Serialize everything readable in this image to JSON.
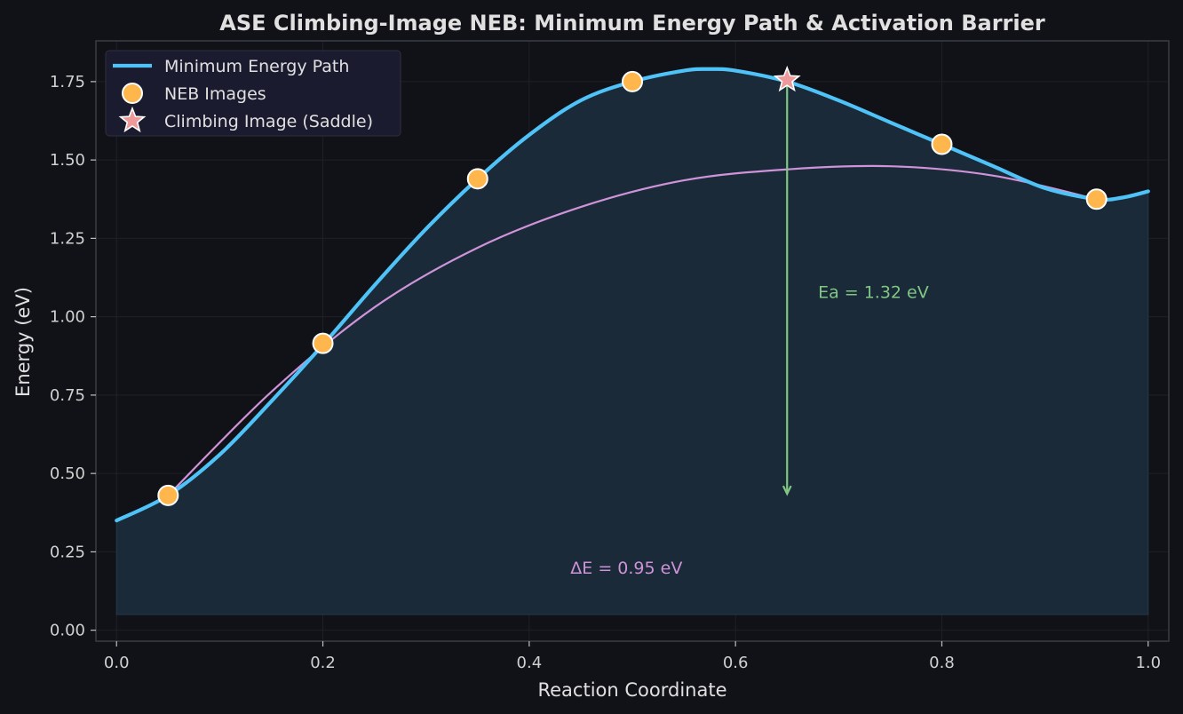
{
  "chart_data": {
    "type": "line",
    "title": "ASE Climbing-Image NEB: Minimum Energy Path & Activation Barrier",
    "xlabel": "Reaction Coordinate",
    "ylabel": "Energy (eV)",
    "xlim": [
      -0.02,
      1.02
    ],
    "ylim": [
      -0.035,
      1.88
    ],
    "x_ticks": [
      0.0,
      0.2,
      0.4,
      0.6,
      0.8,
      1.0
    ],
    "x_tick_labels": [
      "0.0",
      "0.2",
      "0.4",
      "0.6",
      "0.8",
      "1.0"
    ],
    "y_ticks": [
      0.0,
      0.25,
      0.5,
      0.75,
      1.0,
      1.25,
      1.5,
      1.75
    ],
    "y_tick_labels": [
      "0.00",
      "0.25",
      "0.50",
      "0.75",
      "1.00",
      "1.25",
      "1.50",
      "1.75"
    ],
    "grid": true,
    "legend_position": "top-left",
    "fill_baseline": 0.05,
    "series": [
      {
        "name": "Minimum Energy Path",
        "kind": "line",
        "color": "#4fc3f7",
        "x": [
          0.0,
          0.05,
          0.1,
          0.15,
          0.2,
          0.25,
          0.3,
          0.35,
          0.4,
          0.45,
          0.5,
          0.55,
          0.575,
          0.6,
          0.65,
          0.7,
          0.75,
          0.8,
          0.85,
          0.9,
          0.95,
          0.975,
          1.0
        ],
        "y": [
          0.35,
          0.43,
          0.56,
          0.73,
          0.91,
          1.1,
          1.28,
          1.44,
          1.58,
          1.69,
          1.75,
          1.785,
          1.79,
          1.785,
          1.75,
          1.69,
          1.62,
          1.55,
          1.48,
          1.41,
          1.375,
          1.38,
          1.4
        ]
      },
      {
        "name": "NEB Images",
        "kind": "scatter",
        "color": "#ffb74d",
        "x": [
          0.05,
          0.2,
          0.35,
          0.5,
          0.8,
          0.95
        ],
        "y": [
          0.43,
          0.915,
          1.44,
          1.75,
          1.55,
          1.375
        ]
      },
      {
        "name": "Climbing Image (Saddle)",
        "kind": "star",
        "color": "#ef9a9a",
        "x": [
          0.65
        ],
        "y": [
          1.755
        ]
      }
    ],
    "annotations": [
      {
        "id": "ea",
        "text": "Ea = 1.32 eV",
        "color": "#81c784",
        "text_x": 0.68,
        "text_y": 1.08,
        "arrow_x": 0.65,
        "arrow_from_y": 1.755,
        "arrow_to_y": 0.435
      },
      {
        "id": "de",
        "text": "ΔE = 0.95 eV",
        "color": "#ce93d8",
        "text_x": 0.44,
        "text_y": 0.2,
        "arc_x": [
          0.05,
          0.15,
          0.25,
          0.35,
          0.45,
          0.55,
          0.65,
          0.75,
          0.85,
          0.95
        ],
        "arc_y": [
          0.43,
          0.76,
          1.03,
          1.22,
          1.35,
          1.435,
          1.47,
          1.48,
          1.45,
          1.375
        ]
      }
    ]
  },
  "colors": {
    "background": "#111217",
    "plot_background": "#111217",
    "fill": "#1a2a38",
    "grid": "#1e2128",
    "axis": "#3a3d46",
    "text": "#e0e0e0",
    "tick_text": "#d0d0d0",
    "legend_bg": "#1a1b2e"
  }
}
